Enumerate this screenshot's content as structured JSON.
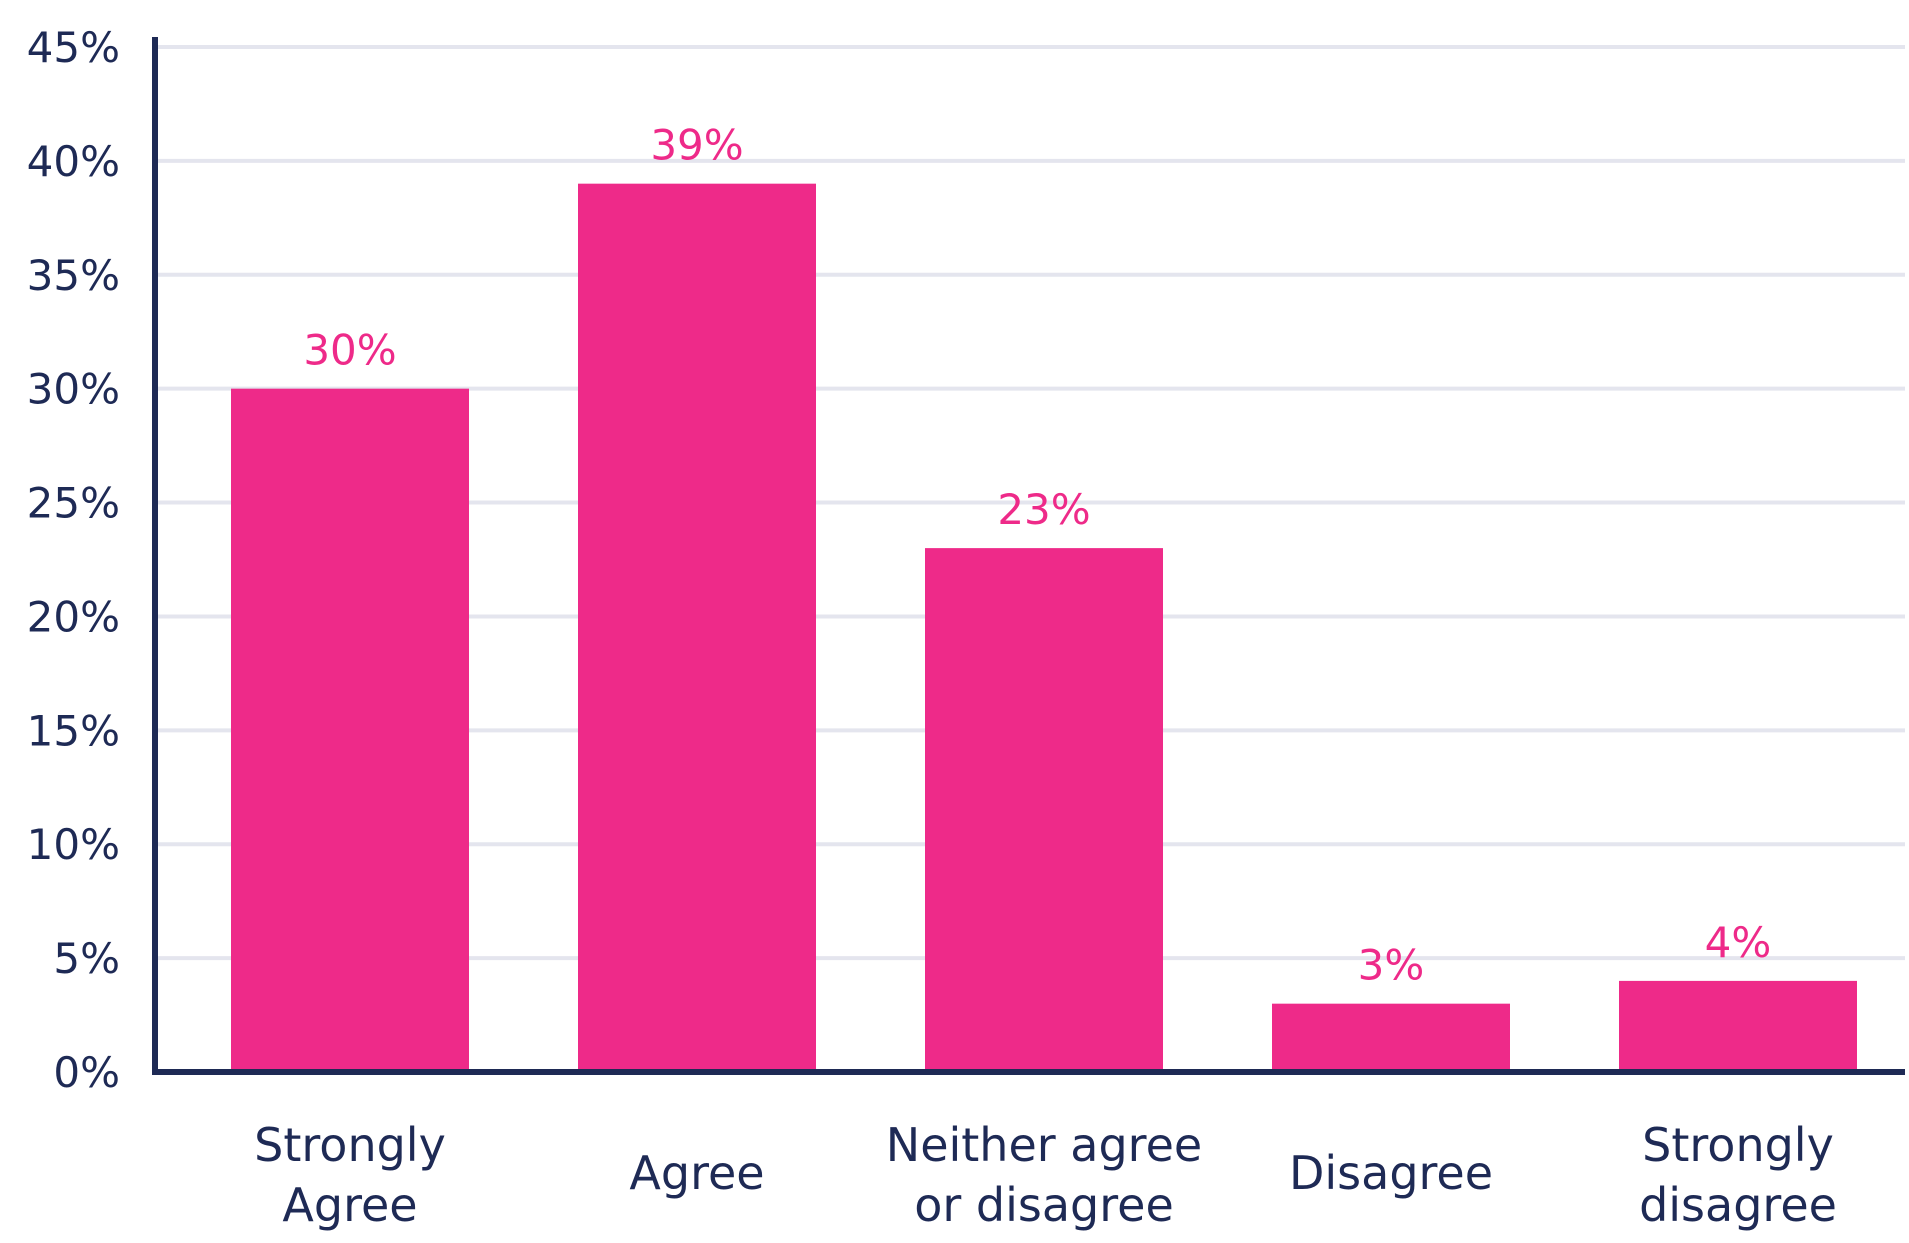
{
  "chart_data": {
    "type": "bar",
    "title": "",
    "xlabel": "",
    "ylabel": "",
    "categories": [
      [
        "Strongly",
        "Agree"
      ],
      [
        "Agree"
      ],
      [
        "Neither agree",
        "or disagree"
      ],
      [
        "Disagree"
      ],
      [
        "Strongly",
        "disagree"
      ]
    ],
    "values": [
      30,
      39,
      23,
      3,
      4
    ],
    "value_labels": [
      "30%",
      "39%",
      "23%",
      "3%",
      "4%"
    ],
    "ylim": [
      0,
      45
    ],
    "yticks": [
      0,
      5,
      10,
      15,
      20,
      25,
      30,
      35,
      40,
      45
    ],
    "ytick_labels": [
      "0%",
      "5%",
      "10%",
      "15%",
      "20%",
      "25%",
      "30%",
      "35%",
      "40%",
      "45%"
    ],
    "grid": true,
    "legend": "none",
    "colors": {
      "bar": "#ee2a89",
      "axis": "#1e2a55",
      "grid": "#e4e5ee",
      "text": "#1e2a55",
      "value_label": "#ee2a89"
    }
  }
}
